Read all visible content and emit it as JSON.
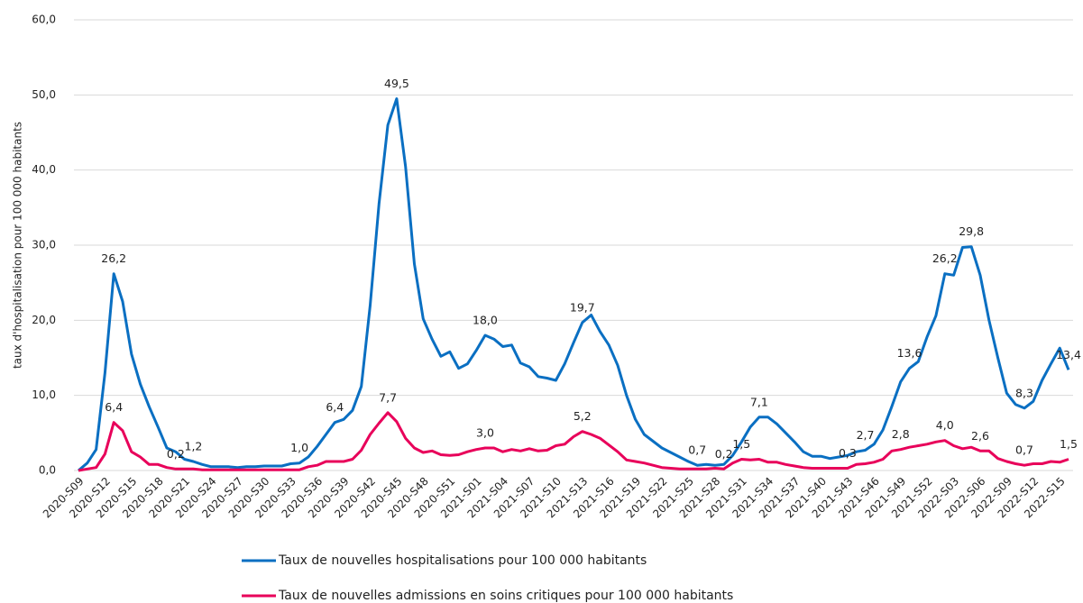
{
  "chart_data": {
    "type": "line",
    "y_label": "taux d'hospitalisation pour 100 000 habitants",
    "categories": [
      "2020-S09",
      null,
      null,
      "2020-S12",
      null,
      null,
      "2020-S15",
      null,
      null,
      "2020-S18",
      null,
      null,
      "2020-S21",
      null,
      null,
      "2020-S24",
      null,
      null,
      "2020-S27",
      null,
      null,
      "2020-S30",
      null,
      null,
      "2020-S33",
      null,
      null,
      "2020-S36",
      null,
      null,
      "2020-S39",
      null,
      null,
      "2020-S42",
      null,
      null,
      "2020-S45",
      null,
      null,
      "2020-S48",
      null,
      null,
      "2020-S51",
      null,
      null,
      "2021-S01",
      null,
      null,
      "2021-S04",
      null,
      null,
      "2021-S07",
      null,
      null,
      "2021-S10",
      null,
      null,
      "2021-S13",
      null,
      null,
      "2021-S16",
      null,
      null,
      "2021-S19",
      null,
      null,
      "2021-S22",
      null,
      null,
      "2021-S25",
      null,
      null,
      "2021-S28",
      null,
      null,
      "2021-S31",
      null,
      null,
      "2021-S34",
      null,
      null,
      "2021-S37",
      null,
      null,
      "2021-S40",
      null,
      null,
      "2021-S43",
      null,
      null,
      "2021-S46",
      null,
      null,
      "2021-S49",
      null,
      null,
      "2021-S52",
      null,
      null,
      "2022-S03",
      null,
      null,
      "2022-S06",
      null,
      null,
      "2022-S09",
      null,
      null,
      "2022-S12",
      null,
      null,
      "2022-S15",
      null
    ],
    "series": [
      {
        "name": "Taux de nouvelles hospitalisations pour 100 000 habitants",
        "color": "#0a6fc2",
        "values": [
          0,
          1.0,
          2.8,
          13.0,
          26.2,
          22.5,
          15.5,
          11.5,
          8.5,
          5.8,
          3.0,
          2.5,
          1.5,
          1.2,
          0.8,
          0.5,
          0.5,
          0.5,
          0.4,
          0.5,
          0.5,
          0.6,
          0.6,
          0.6,
          0.9,
          1.0,
          1.8,
          3.2,
          4.8,
          6.4,
          6.8,
          8.0,
          11.2,
          22.0,
          35.5,
          46.0,
          49.5,
          40.5,
          27.5,
          20.2,
          17.5,
          15.2,
          15.8,
          13.6,
          14.2,
          16.0,
          18.0,
          17.5,
          16.5,
          16.7,
          14.3,
          13.8,
          12.5,
          12.3,
          12.0,
          14.2,
          17.0,
          19.7,
          20.7,
          18.5,
          16.7,
          14.0,
          10.0,
          6.8,
          4.8,
          3.9,
          3.0,
          2.4,
          1.8,
          1.2,
          0.7,
          0.8,
          0.7,
          0.8,
          2.0,
          3.8,
          5.8,
          7.1,
          7.1,
          6.2,
          5.0,
          3.8,
          2.5,
          1.9,
          1.9,
          1.6,
          1.8,
          2.0,
          2.5,
          2.7,
          3.5,
          5.4,
          8.5,
          11.8,
          13.6,
          14.5,
          17.8,
          20.6,
          26.2,
          26.0,
          29.7,
          29.8,
          26.0,
          20.0,
          15.0,
          10.3,
          8.8,
          8.3,
          9.2,
          12.0,
          14.2,
          16.3,
          13.4
        ],
        "value_labels": [
          null,
          null,
          null,
          null,
          "26,2",
          null,
          null,
          null,
          null,
          null,
          null,
          null,
          null,
          "1,2",
          null,
          null,
          null,
          null,
          null,
          null,
          null,
          null,
          null,
          null,
          null,
          "1,0",
          null,
          null,
          null,
          "6,4",
          null,
          null,
          null,
          null,
          null,
          null,
          "49,5",
          null,
          null,
          null,
          null,
          null,
          null,
          null,
          null,
          null,
          "18,0",
          null,
          null,
          null,
          null,
          null,
          null,
          null,
          null,
          null,
          null,
          "19,7",
          null,
          null,
          null,
          null,
          null,
          null,
          null,
          null,
          null,
          null,
          null,
          null,
          "0,7",
          null,
          null,
          null,
          null,
          null,
          null,
          "7,1",
          null,
          null,
          null,
          null,
          null,
          null,
          null,
          null,
          null,
          null,
          null,
          "2,7",
          null,
          null,
          null,
          null,
          "13,6",
          null,
          null,
          null,
          "26,2",
          null,
          null,
          "29,8",
          null,
          null,
          null,
          null,
          null,
          "8,3",
          null,
          null,
          null,
          null,
          "13,4"
        ]
      },
      {
        "name": "Taux de nouvelles admissions en soins critiques pour 100 000 habitants",
        "color": "#e8005a",
        "values": [
          0,
          0.2,
          0.4,
          2.2,
          6.4,
          5.3,
          2.5,
          1.8,
          0.8,
          0.8,
          0.4,
          0.2,
          0.2,
          0.2,
          0.1,
          0.1,
          0.1,
          0.1,
          0.1,
          0.1,
          0.1,
          0.1,
          0.1,
          0.1,
          0.1,
          0.1,
          0.5,
          0.7,
          1.2,
          1.2,
          1.2,
          1.5,
          2.7,
          4.8,
          6.3,
          7.7,
          6.5,
          4.3,
          3.0,
          2.4,
          2.6,
          2.1,
          2.0,
          2.1,
          2.5,
          2.8,
          3.0,
          3.0,
          2.5,
          2.8,
          2.6,
          2.9,
          2.6,
          2.7,
          3.3,
          3.5,
          4.5,
          5.2,
          4.8,
          4.3,
          3.4,
          2.5,
          1.4,
          1.2,
          1.0,
          0.7,
          0.4,
          0.3,
          0.2,
          0.2,
          0.2,
          0.2,
          0.3,
          0.2,
          1.0,
          1.5,
          1.4,
          1.5,
          1.1,
          1.1,
          0.8,
          0.6,
          0.4,
          0.3,
          0.3,
          0.3,
          0.3,
          0.3,
          0.8,
          0.9,
          1.1,
          1.5,
          2.6,
          2.8,
          3.1,
          3.3,
          3.5,
          3.8,
          4.0,
          3.3,
          2.9,
          3.1,
          2.6,
          2.6,
          1.6,
          1.2,
          0.9,
          0.7,
          0.9,
          0.9,
          1.2,
          1.1,
          1.5
        ],
        "value_labels": [
          null,
          null,
          null,
          null,
          "6,4",
          null,
          null,
          null,
          null,
          null,
          null,
          "0,2",
          null,
          null,
          null,
          null,
          null,
          null,
          null,
          null,
          null,
          null,
          null,
          null,
          null,
          null,
          null,
          null,
          null,
          null,
          null,
          null,
          null,
          null,
          null,
          "7,7",
          null,
          null,
          null,
          null,
          null,
          null,
          null,
          null,
          null,
          null,
          "3,0",
          null,
          null,
          null,
          null,
          null,
          null,
          null,
          null,
          null,
          null,
          "5,2",
          null,
          null,
          null,
          null,
          null,
          null,
          null,
          null,
          null,
          null,
          null,
          null,
          null,
          null,
          null,
          "0,2",
          null,
          "1,5",
          null,
          null,
          null,
          null,
          null,
          null,
          null,
          null,
          null,
          null,
          null,
          "0,3",
          null,
          null,
          null,
          null,
          null,
          "2,8",
          null,
          null,
          null,
          null,
          "4,0",
          null,
          null,
          null,
          "2,6",
          null,
          null,
          null,
          null,
          "0,7",
          null,
          null,
          null,
          null,
          "1,5"
        ]
      }
    ],
    "ylim": [
      0,
      60
    ],
    "yticks": [
      {
        "value": 0,
        "label": "0,0"
      },
      {
        "value": 10,
        "label": "10,0"
      },
      {
        "value": 20,
        "label": "20,0"
      },
      {
        "value": 30,
        "label": "30,0"
      },
      {
        "value": 40,
        "label": "40,0"
      },
      {
        "value": 50,
        "label": "50,0"
      },
      {
        "value": 60,
        "label": "60,0"
      }
    ],
    "grid": true,
    "legend": "bottom"
  }
}
